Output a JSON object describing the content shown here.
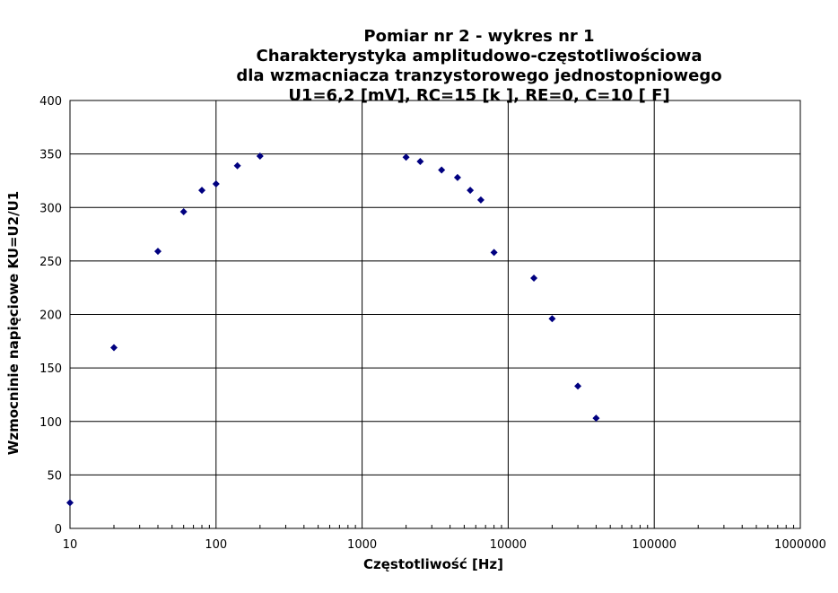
{
  "chart_data": {
    "type": "scatter",
    "title_lines": [
      "Pomiar nr 2 - wykres nr 1",
      "Charakterystyka amplitudowo-częstotliwościowa",
      "dla wzmacniacza tranzystorowego jednostopniowego",
      "U1=6,2 [mV],  RC=15 [k   ], RE=0, C=10 [   F]"
    ],
    "xlabel": "Częstotliwość [Hz]",
    "ylabel": "Wzmocninie napięciowe KU=U2/U1",
    "x_scale": "log",
    "xlim": [
      10,
      1000000
    ],
    "ylim": [
      0,
      400
    ],
    "x_ticks": [
      10,
      100,
      1000,
      10000,
      100000,
      1000000
    ],
    "x_tick_labels": [
      "10",
      "100",
      "1000",
      "10000",
      "100000",
      "1000000"
    ],
    "y_ticks": [
      0,
      50,
      100,
      150,
      200,
      250,
      300,
      350,
      400
    ],
    "y_tick_labels": [
      "0",
      "50",
      "100",
      "150",
      "200",
      "250",
      "300",
      "350",
      "400"
    ],
    "grid": true,
    "marker_color": "#000080",
    "series": [
      {
        "points": [
          [
            10,
            24
          ],
          [
            20,
            169
          ],
          [
            40,
            259
          ],
          [
            60,
            296
          ],
          [
            80,
            316
          ],
          [
            100,
            322
          ],
          [
            140,
            339
          ],
          [
            200,
            348
          ],
          [
            2000,
            347
          ],
          [
            2500,
            343
          ],
          [
            3500,
            335
          ],
          [
            4500,
            328
          ],
          [
            5500,
            316
          ],
          [
            6500,
            307
          ],
          [
            8000,
            258
          ],
          [
            15000,
            234
          ],
          [
            20000,
            196
          ],
          [
            30000,
            133
          ],
          [
            40000,
            103
          ]
        ]
      }
    ]
  }
}
